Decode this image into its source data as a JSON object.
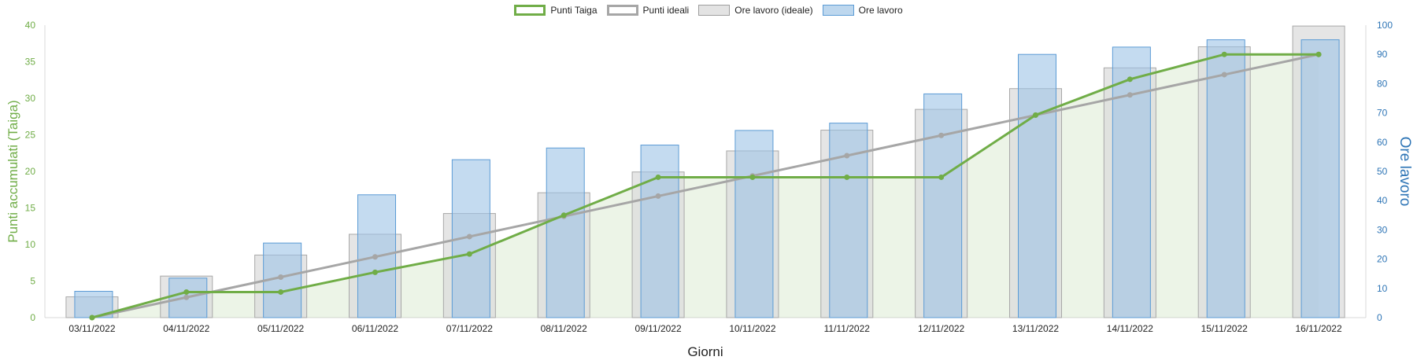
{
  "chart_data": {
    "type": "bar+line",
    "categories": [
      "03/11/2022",
      "04/11/2022",
      "05/11/2022",
      "06/11/2022",
      "07/11/2022",
      "08/11/2022",
      "09/11/2022",
      "10/11/2022",
      "11/11/2022",
      "12/11/2022",
      "13/11/2022",
      "14/11/2022",
      "15/11/2022",
      "16/11/2022"
    ],
    "series": [
      {
        "name": "Punti Taiga",
        "kind": "line",
        "axis": "left",
        "color": "#70ad47",
        "values": [
          0,
          3.5,
          3.5,
          6.2,
          8.7,
          14.0,
          19.2,
          19.2,
          19.2,
          19.2,
          27.7,
          32.6,
          36.0,
          36.0
        ]
      },
      {
        "name": "Punti ideali",
        "kind": "line",
        "axis": "left",
        "color": "#a6a6a6",
        "values": [
          0,
          2.77,
          5.54,
          8.31,
          11.08,
          13.85,
          16.62,
          19.38,
          22.15,
          24.92,
          27.69,
          30.46,
          33.23,
          36.0
        ]
      },
      {
        "name": "Ore lavoro (ideale)",
        "kind": "bar",
        "axis": "right",
        "color": "#e3e3e3",
        "values": [
          7.1,
          14.2,
          21.4,
          28.5,
          35.6,
          42.7,
          49.8,
          57.0,
          64.1,
          71.2,
          78.3,
          85.4,
          92.6,
          99.7
        ]
      },
      {
        "name": "Ore lavoro",
        "kind": "bar",
        "axis": "right",
        "color": "#bdd7ee",
        "values": [
          9,
          13.5,
          25.5,
          42,
          54,
          58,
          59,
          64,
          66.5,
          76.5,
          90,
          92.5,
          95,
          95
        ]
      }
    ],
    "title": "",
    "xlabel": "Giorni",
    "ylabel": "Punti accumulati (Taiga)",
    "y2label": "Ore lavoro",
    "ylim": [
      0,
      40
    ],
    "y2lim": [
      0,
      100
    ],
    "yticks": [
      0,
      5,
      10,
      15,
      20,
      25,
      30,
      35,
      40
    ],
    "y2ticks": [
      0,
      10,
      20,
      30,
      40,
      50,
      60,
      70,
      80,
      90,
      100
    ],
    "legend_position": "top-center",
    "colors": {
      "green": "#70ad47",
      "gray_line": "#a6a6a6",
      "gray_bar": "#e3e3e3",
      "blue_bar": "#bdd7ee",
      "blue_axis": "#2e75b6"
    }
  }
}
